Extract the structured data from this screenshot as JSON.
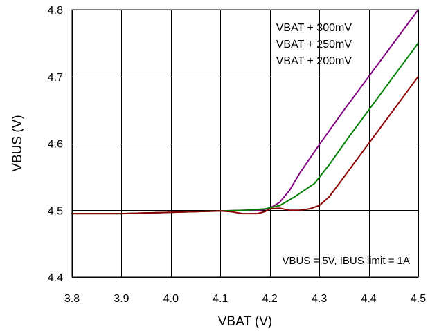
{
  "chart_data": {
    "type": "line",
    "xlabel": "VBAT (V)",
    "ylabel": "VBUS (V)",
    "xlim": [
      3.8,
      4.5
    ],
    "ylim": [
      4.4,
      4.8
    ],
    "grid": true,
    "xticks": [
      {
        "value": 3.8,
        "label": "3.8"
      },
      {
        "value": 3.9,
        "label": "3.9"
      },
      {
        "value": 4.0,
        "label": "4.0"
      },
      {
        "value": 4.1,
        "label": "4.1"
      },
      {
        "value": 4.2,
        "label": "4.2"
      },
      {
        "value": 4.3,
        "label": "4.3"
      },
      {
        "value": 4.4,
        "label": "4.4"
      },
      {
        "value": 4.5,
        "label": "4.5"
      }
    ],
    "yticks": [
      {
        "value": 4.4,
        "label": "4.4"
      },
      {
        "value": 4.5,
        "label": "4.5"
      },
      {
        "value": 4.6,
        "label": "4.6"
      },
      {
        "value": 4.7,
        "label": "4.7"
      },
      {
        "value": 4.8,
        "label": "4.8"
      }
    ],
    "legend_position": "top-right",
    "annotation": "VBUS = 5V, IBUS limit = 1A",
    "series": [
      {
        "name": "VBAT + 300mV",
        "color": "#800080",
        "points": [
          [
            3.8,
            4.495
          ],
          [
            3.9,
            4.495
          ],
          [
            4.0,
            4.497
          ],
          [
            4.1,
            4.499
          ],
          [
            4.15,
            4.5
          ],
          [
            4.18,
            4.5
          ],
          [
            4.2,
            4.503
          ],
          [
            4.22,
            4.512
          ],
          [
            4.24,
            4.53
          ],
          [
            4.26,
            4.555
          ],
          [
            4.3,
            4.598
          ],
          [
            4.35,
            4.65
          ],
          [
            4.4,
            4.7
          ],
          [
            4.45,
            4.75
          ],
          [
            4.5,
            4.8
          ]
        ]
      },
      {
        "name": "VBAT + 250mV",
        "color": "#008000",
        "points": [
          [
            3.8,
            4.495
          ],
          [
            3.9,
            4.495
          ],
          [
            4.0,
            4.497
          ],
          [
            4.1,
            4.499
          ],
          [
            4.15,
            4.5
          ],
          [
            4.19,
            4.502
          ],
          [
            4.22,
            4.507
          ],
          [
            4.25,
            4.52
          ],
          [
            4.29,
            4.54
          ],
          [
            4.32,
            4.568
          ],
          [
            4.36,
            4.61
          ],
          [
            4.4,
            4.65
          ],
          [
            4.45,
            4.7
          ],
          [
            4.5,
            4.75
          ]
        ]
      },
      {
        "name": "VBAT + 200mV",
        "color": "#8B0000",
        "points": [
          [
            3.8,
            4.495
          ],
          [
            3.9,
            4.495
          ],
          [
            4.0,
            4.497
          ],
          [
            4.1,
            4.499
          ],
          [
            4.12,
            4.498
          ],
          [
            4.145,
            4.495
          ],
          [
            4.175,
            4.495
          ],
          [
            4.19,
            4.498
          ],
          [
            4.2,
            4.502
          ],
          [
            4.22,
            4.503
          ],
          [
            4.24,
            4.5
          ],
          [
            4.26,
            4.5
          ],
          [
            4.28,
            4.502
          ],
          [
            4.3,
            4.507
          ],
          [
            4.32,
            4.52
          ],
          [
            4.35,
            4.55
          ],
          [
            4.4,
            4.6
          ],
          [
            4.45,
            4.65
          ],
          [
            4.5,
            4.7
          ]
        ]
      }
    ]
  }
}
